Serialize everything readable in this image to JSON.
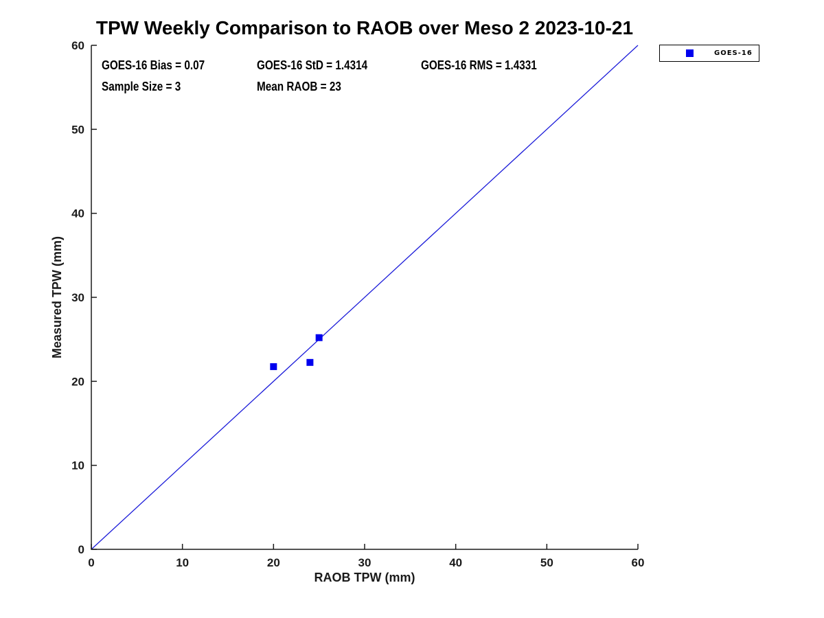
{
  "chart_data": {
    "type": "scatter",
    "title": "TPW Weekly Comparison to RAOB over Meso 2 2023-10-21",
    "xlabel": "RAOB TPW (mm)",
    "ylabel": "Measured TPW (mm)",
    "xlim": [
      0,
      60
    ],
    "ylim": [
      0,
      60
    ],
    "x_ticks": [
      0,
      10,
      20,
      30,
      40,
      50,
      60
    ],
    "y_ticks": [
      0,
      10,
      20,
      30,
      40,
      50,
      60
    ],
    "grid": false,
    "legend_position": "outside-top-right",
    "series": [
      {
        "name": "GOES-16",
        "marker": "square",
        "color": "#0000ee",
        "points": [
          {
            "x": 20,
            "y": 21.75
          },
          {
            "x": 24,
            "y": 22.25
          },
          {
            "x": 25,
            "y": 25.2
          }
        ]
      }
    ],
    "reference_line": {
      "type": "identity",
      "x": [
        0,
        60
      ],
      "y": [
        0,
        60
      ],
      "color": "#1b1bd9"
    },
    "annotations": [
      "GOES-16 Bias = 0.07",
      "GOES-16 StD = 1.4314",
      "GOES-16 RMS = 1.4331",
      "Sample Size = 3",
      "Mean RAOB = 23"
    ],
    "colors": {
      "axis": "#1a1a1a",
      "marker": "#0000ee",
      "line": "#1b1bd9"
    }
  }
}
